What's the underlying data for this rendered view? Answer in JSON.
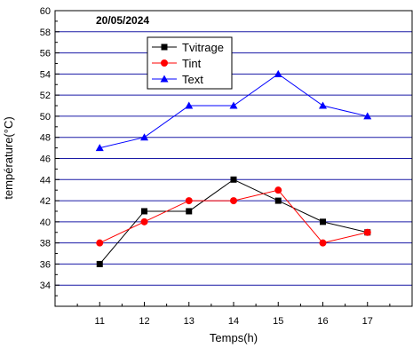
{
  "chart_data": {
    "type": "line",
    "title": "20/05/2024",
    "xlabel": "Temps(h)",
    "ylabel": "température(°C)",
    "x": [
      11,
      12,
      13,
      14,
      15,
      16,
      17
    ],
    "xlim": [
      10,
      18
    ],
    "ylim": [
      32,
      60
    ],
    "yticks": [
      34,
      36,
      38,
      40,
      42,
      44,
      46,
      48,
      50,
      52,
      54,
      56,
      58,
      60
    ],
    "grid": "horizontal",
    "legend_position": "top-left",
    "series": [
      {
        "name": "Tvitrage",
        "values": [
          36,
          41,
          41,
          44,
          42,
          40,
          39
        ],
        "color": "#000000",
        "marker": "square"
      },
      {
        "name": "Tint",
        "values": [
          38,
          40,
          42,
          42,
          43,
          38,
          39
        ],
        "color": "#ff0000",
        "marker": "circle"
      },
      {
        "name": "Text",
        "values": [
          47,
          48,
          51,
          51,
          54,
          51,
          50
        ],
        "color": "#0000ff",
        "marker": "triangle"
      }
    ],
    "grid_color": "#1a1aa6"
  }
}
